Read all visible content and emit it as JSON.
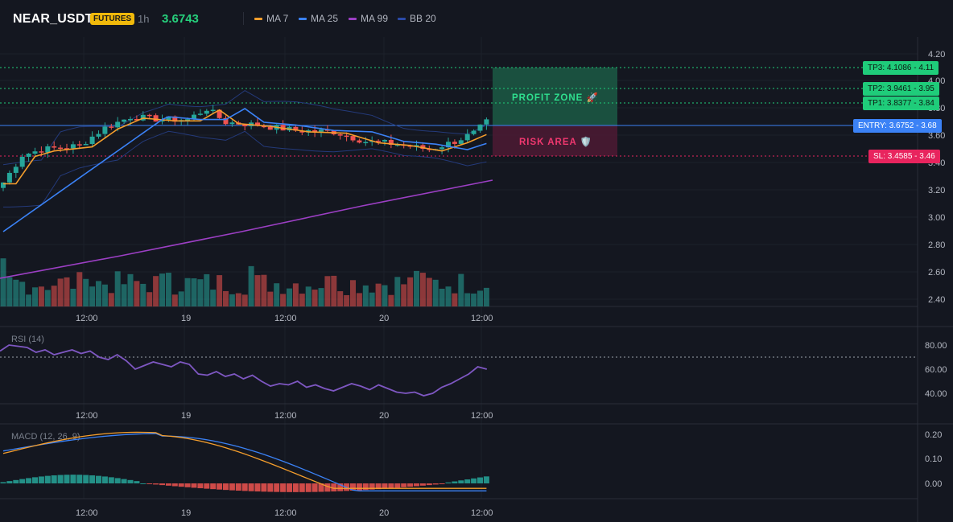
{
  "header": {
    "symbol": "NEAR_USDT",
    "badge": "FUTURES",
    "timeframe": "1h",
    "price": "3.6743",
    "legend": [
      {
        "label": "MA 7",
        "color": "#f59e2c"
      },
      {
        "label": "MA 25",
        "color": "#3b82f6"
      },
      {
        "label": "MA 99",
        "color": "#9c3fc4"
      },
      {
        "label": "BB 20",
        "color": "#2b4aa8"
      }
    ]
  },
  "price_axis": {
    "ticks": [
      "4.20",
      "4.00",
      "3.80",
      "3.60",
      "3.40",
      "3.20",
      "3.00",
      "2.80",
      "2.60",
      "2.40"
    ]
  },
  "time_axis": {
    "ticks": [
      "12:00",
      "19",
      "12:00",
      "20",
      "12:00"
    ]
  },
  "zones": {
    "profit": "PROFIT ZONE 🚀",
    "risk": "RISK AREA 🛡️"
  },
  "levels": {
    "tp3": {
      "label": "TP3: 4.1086",
      "value": "4.11"
    },
    "tp2": {
      "label": "TP2: 3.9461",
      "value": "3.95"
    },
    "tp1": {
      "label": "TP1: 3.8377",
      "value": "3.84"
    },
    "entry": {
      "label": "ENTRY: 3.6752",
      "value": "3.68"
    },
    "sl": {
      "label": "SL: 3.4585",
      "value": "3.46"
    }
  },
  "rsi": {
    "label": "RSI (14)",
    "ticks": [
      "80.00",
      "60.00",
      "40.00"
    ]
  },
  "macd": {
    "label": "MACD (12, 26, 9)",
    "ticks": [
      "0.20",
      "0.10",
      "0.00"
    ]
  },
  "colors": {
    "up": "#26a69a",
    "down": "#ef5350",
    "profit": "#1fcc7a",
    "risk": "#e8245e",
    "entry": "#3b82f6"
  },
  "chart_data": {
    "type": "candlestick",
    "x_ticks": [
      "12:00",
      "19",
      "12:00",
      "20",
      "12:00"
    ],
    "ylim": [
      2.35,
      4.25
    ],
    "last_price": 3.6743,
    "trade_levels": {
      "tp3": 4.1086,
      "tp2": 3.9461,
      "tp1": 3.8377,
      "entry": 3.6752,
      "sl": 3.4585
    },
    "rsi_current": 60,
    "rsi_overbought": 70
  }
}
